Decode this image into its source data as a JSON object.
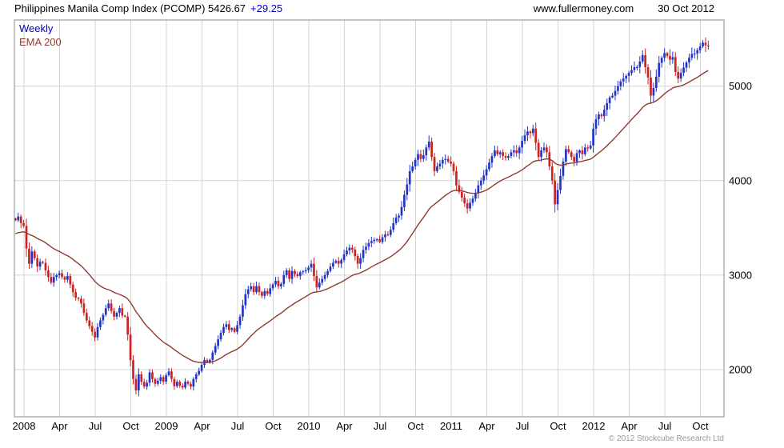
{
  "header": {
    "title": "Philippines Manila Comp Index (PCOMP) 5426.67",
    "change": "+29.25",
    "site": "www.fullermoney.com",
    "date": "30 Oct 2012"
  },
  "legend": {
    "weekly": "Weekly",
    "ema": "EMA 200"
  },
  "footer": {
    "copyright": "© 2012 Stockcube Research Ltd"
  },
  "colors": {
    "up": "#2234c8",
    "down": "#cc2222",
    "ema": "#8f3b2f",
    "grid": "#d4d4d4",
    "border": "#888888",
    "text": "#000000",
    "change": "#0000cc",
    "legend_weekly": "#0000bb",
    "copyright": "#999999"
  },
  "chart_data": {
    "type": "candlestick",
    "title": "Philippines Manila Comp Index (PCOMP)",
    "interval": "weekly",
    "last_price": 5426.67,
    "change": 29.25,
    "overlay": "EMA 200",
    "source": "www.fullermoney.com",
    "as_of": "30 Oct 2012",
    "ylim": [
      1500,
      5700
    ],
    "yticks": [
      2000,
      3000,
      4000,
      5000
    ],
    "xticks": [
      {
        "t": 2008.0,
        "label": "2008"
      },
      {
        "t": 2008.25,
        "label": "Apr"
      },
      {
        "t": 2008.5,
        "label": "Jul"
      },
      {
        "t": 2008.75,
        "label": "Oct"
      },
      {
        "t": 2009.0,
        "label": "2009"
      },
      {
        "t": 2009.25,
        "label": "Apr"
      },
      {
        "t": 2009.5,
        "label": "Jul"
      },
      {
        "t": 2009.75,
        "label": "Oct"
      },
      {
        "t": 2010.0,
        "label": "2010"
      },
      {
        "t": 2010.25,
        "label": "Apr"
      },
      {
        "t": 2010.5,
        "label": "Jul"
      },
      {
        "t": 2010.75,
        "label": "Oct"
      },
      {
        "t": 2011.0,
        "label": "2011"
      },
      {
        "t": 2011.25,
        "label": "Apr"
      },
      {
        "t": 2011.5,
        "label": "Jul"
      },
      {
        "t": 2011.75,
        "label": "Oct"
      },
      {
        "t": 2012.0,
        "label": "2012"
      },
      {
        "t": 2012.25,
        "label": "Apr"
      },
      {
        "t": 2012.5,
        "label": "Jul"
      },
      {
        "t": 2012.75,
        "label": "Oct"
      }
    ],
    "start_t": 2007.94,
    "week_step": 0.019231,
    "ema_period_weeks": 34,
    "ema_start": 3430,
    "closes": [
      3580,
      3620,
      3550,
      3520,
      3280,
      3120,
      3250,
      3180,
      3090,
      3140,
      3130,
      3050,
      2980,
      2920,
      2980,
      3000,
      3020,
      2980,
      2950,
      2990,
      2900,
      2820,
      2760,
      2750,
      2700,
      2600,
      2520,
      2460,
      2400,
      2340,
      2450,
      2520,
      2580,
      2650,
      2700,
      2620,
      2560,
      2600,
      2650,
      2570,
      2560,
      2370,
      2100,
      1900,
      1780,
      1950,
      1870,
      1820,
      1860,
      1970,
      1900,
      1850,
      1880,
      1920,
      1872,
      1940,
      1980,
      1900,
      1825,
      1870,
      1830,
      1810,
      1872,
      1850,
      1820,
      1900,
      1950,
      1986,
      2050,
      2100,
      2080,
      2103,
      2180,
      2250,
      2320,
      2389,
      2450,
      2480,
      2420,
      2437,
      2400,
      2470,
      2560,
      2680,
      2798,
      2850,
      2880,
      2820,
      2884,
      2820,
      2780,
      2830,
      2800,
      2860,
      2900,
      2940,
      2880,
      2908,
      3000,
      3050,
      2960,
      3044,
      3010,
      2990,
      3030,
      3040,
      3052,
      3080,
      3120,
      2990,
      2870,
      2920,
      2960,
      3000,
      3043,
      3090,
      3130,
      3150,
      3120,
      3161,
      3220,
      3260,
      3290,
      3270,
      3200,
      3120,
      3180,
      3266,
      3300,
      3340,
      3360,
      3373,
      3380,
      3350,
      3400,
      3430,
      3426,
      3480,
      3550,
      3610,
      3630,
      3720,
      3850,
      3960,
      4100,
      4150,
      4220,
      4280,
      4230,
      4268,
      4350,
      4413,
      4250,
      4100,
      4150,
      4180,
      4220,
      4230,
      4201,
      4180,
      4100,
      3950,
      3881,
      3820,
      3760,
      3705,
      3766,
      3810,
      3870,
      3950,
      4000,
      4055,
      4120,
      4190,
      4260,
      4319,
      4280,
      4300,
      4260,
      4242,
      4260,
      4300,
      4320,
      4291,
      4350,
      4420,
      4480,
      4520,
      4503,
      4550,
      4400,
      4250,
      4320,
      4350,
      4300,
      4150,
      3999,
      3750,
      3900,
      4050,
      4200,
      4333,
      4300,
      4250,
      4200,
      4291,
      4320,
      4280,
      4350,
      4340,
      4372,
      4550,
      4650,
      4700,
      4682,
      4750,
      4820,
      4880,
      4899,
      4950,
      5000,
      5050,
      5080,
      5108,
      5140,
      5170,
      5200,
      5203,
      5260,
      5328,
      5200,
      5091,
      4900,
      4980,
      5100,
      5246,
      5300,
      5350,
      5320,
      5280,
      5307,
      5150,
      5080,
      5140,
      5196,
      5250,
      5300,
      5340,
      5346,
      5380,
      5420,
      5460,
      5430,
      5426.67
    ]
  }
}
